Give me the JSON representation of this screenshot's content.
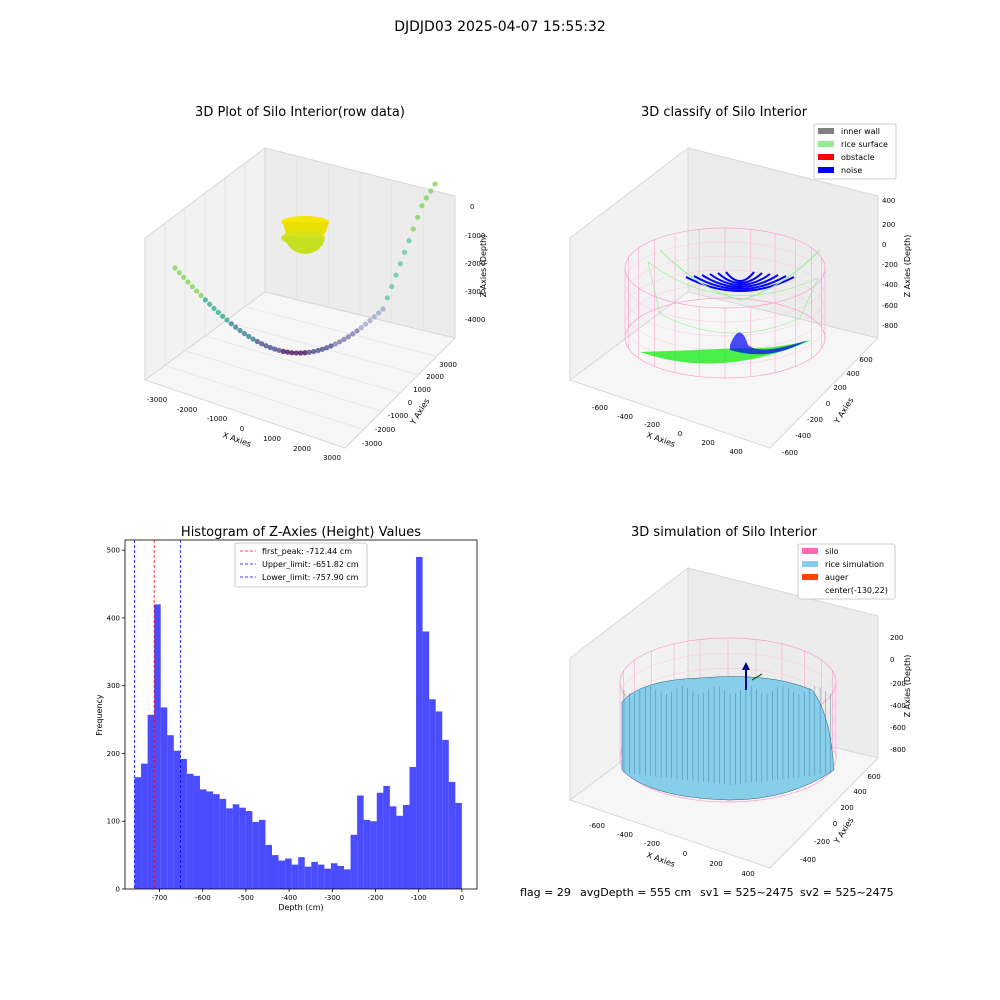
{
  "suptitle": "DJDJD03 2025-04-07 15:55:32",
  "panels": {
    "raw": {
      "title": "3D Plot of Silo Interior(row data)",
      "xlabel": "X Axies",
      "ylabel": "Y Axies",
      "zlabel": "Z Axies (Depth)",
      "xticks": [
        "-3000",
        "-2000",
        "-1000",
        "0",
        "1000",
        "2000",
        "3000"
      ],
      "yticks": [
        "-3000",
        "-2000",
        "-1000",
        "0",
        "1000",
        "2000",
        "3000"
      ],
      "zticks": [
        "0",
        "-1000",
        "-2000",
        "-3000",
        "-4000"
      ]
    },
    "classify": {
      "title": "3D classify of Silo Interior",
      "xlabel": "X Axies",
      "ylabel": "Y Axies",
      "zlabel": "Z Axies (Depth)",
      "xticks": [
        "-600",
        "-400",
        "-200",
        "0",
        "200",
        "400"
      ],
      "yticks": [
        "-600",
        "-400",
        "-200",
        "0",
        "200",
        "400",
        "600"
      ],
      "zticks": [
        "400",
        "200",
        "0",
        "-200",
        "-400",
        "-600",
        "-800"
      ],
      "legend": [
        {
          "label": "inner wall",
          "color": "#808080"
        },
        {
          "label": "rice surface",
          "color": "#90ee90"
        },
        {
          "label": "obstacle",
          "color": "#ff0000"
        },
        {
          "label": "noise",
          "color": "#0000ff"
        }
      ]
    },
    "simulation": {
      "title": "3D simulation of Silo Interior",
      "xlabel": "X Axies",
      "ylabel": "Y Axies",
      "zlabel": "Z Axies (Depth)",
      "xticks": [
        "-600",
        "-400",
        "-200",
        "0",
        "200",
        "400"
      ],
      "yticks": [
        "-400",
        "-200",
        "0",
        "200",
        "400",
        "600"
      ],
      "zticks": [
        "200",
        "0",
        "-200",
        "-400",
        "-600",
        "-800"
      ],
      "legend": [
        {
          "label": "silo",
          "color": "#ff69b4"
        },
        {
          "label": "rice simulation",
          "color": "#87ceeb"
        },
        {
          "label": "auger",
          "color": "#ff4500"
        },
        {
          "label": "center(-130,22)",
          "color": ""
        }
      ]
    }
  },
  "chart_data": {
    "type": "bar",
    "title": "Histogram of Z-Axies (Height) Values",
    "xlabel": "Depth (cm)",
    "ylabel": "Frequency",
    "xlim": [
      -780,
      35
    ],
    "ylim": [
      0,
      515
    ],
    "xticks": [
      -700,
      -600,
      -500,
      -400,
      -300,
      -200,
      -100,
      0
    ],
    "yticks": [
      0,
      100,
      200,
      300,
      400,
      500
    ],
    "bar_color": "#0000ff",
    "bin_start": -758,
    "bin_width": 15.16,
    "values": [
      165,
      185,
      257,
      420,
      268,
      227,
      204,
      192,
      170,
      167,
      147,
      144,
      140,
      133,
      119,
      125,
      120,
      115,
      99,
      102,
      65,
      50,
      42,
      45,
      36,
      47,
      33,
      40,
      36,
      30,
      38,
      34,
      29,
      80,
      138,
      102,
      100,
      142,
      152,
      122,
      108,
      124,
      180,
      490,
      380,
      280,
      262,
      220,
      158,
      127
    ],
    "lines": [
      {
        "label": "first_peak: -712.44 cm",
        "x": -712.44,
        "color": "#ff0000"
      },
      {
        "label": "Upper_limit: -651.82 cm",
        "x": -651.82,
        "color": "#0000ff"
      },
      {
        "label": "Lower_limit: -757.90 cm",
        "x": -757.9,
        "color": "#0000ff"
      }
    ]
  },
  "footer": {
    "flag": "flag = 29",
    "avg": "avgDepth = 555 cm",
    "sv1": "sv1 = 525~2475",
    "sv2": "sv2 = 525~2475"
  }
}
